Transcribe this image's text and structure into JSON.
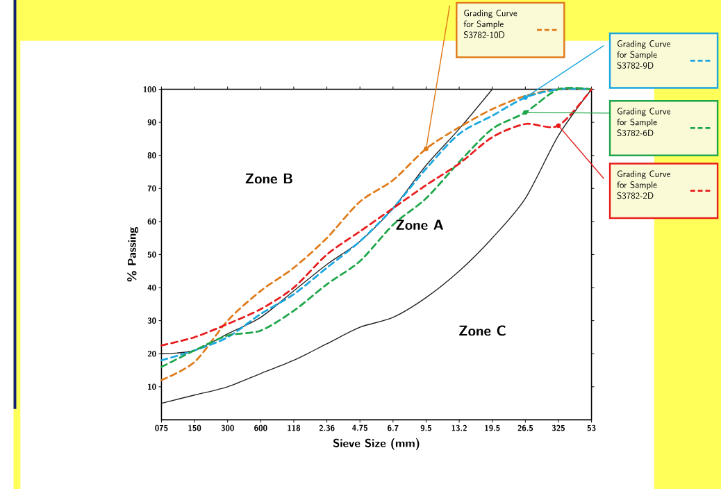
{
  "chart_data": {
    "type": "line",
    "xlabel": "Sieve Size (mm)",
    "ylabel": "% Passing",
    "categories": [
      "075",
      "150",
      "300",
      "600",
      "118",
      "2.36",
      "4.75",
      "6.7",
      "9.5",
      "13.2",
      "19.5",
      "26.5",
      "325",
      "53"
    ],
    "ylim": [
      0,
      100
    ],
    "yticks": [
      10,
      20,
      30,
      40,
      50,
      60,
      70,
      80,
      90,
      100
    ],
    "grid": false,
    "legend": "right",
    "marker": "none",
    "series": [
      {
        "color": "#222222",
        "line_style": "solid",
        "values": [
          20,
          21,
          26,
          31,
          39,
          47,
          54,
          64,
          77,
          88,
          100,
          null,
          null,
          null
        ]
      },
      {
        "color": "#222222",
        "line_style": "solid",
        "values": [
          5,
          7.5,
          10,
          14,
          18,
          23,
          28,
          31,
          37,
          45,
          55,
          67,
          86,
          100
        ]
      },
      {
        "name": "Grading Curve for Sample S3782-10D",
        "color": "#e07b1a",
        "line_style": "dashed",
        "values": [
          12,
          17.5,
          30,
          39,
          46,
          55,
          66,
          72.5,
          82,
          88.5,
          94,
          98,
          100,
          100
        ]
      },
      {
        "name": "Grading Curve for Sample S3782-9D",
        "color": "#1aa7e0",
        "line_style": "dashed",
        "values": [
          18,
          21,
          25,
          32,
          38,
          46,
          54,
          64,
          76,
          86.5,
          92,
          97.5,
          100,
          100
        ]
      },
      {
        "name": "Grading Curve for Sample S3782-6D",
        "color": "#1fa64a",
        "line_style": "dashed",
        "values": [
          16,
          21,
          25.5,
          27,
          33,
          41,
          48,
          59,
          67,
          78,
          88,
          93,
          100,
          100
        ]
      },
      {
        "name": "Grading Curve for Sample S3782-2D",
        "color": "#e81c1c",
        "line_style": "dashed",
        "values": [
          22.5,
          25,
          29,
          33.5,
          40,
          50,
          57,
          64,
          71,
          77.5,
          85.5,
          89.5,
          89,
          100
        ]
      }
    ],
    "annotations": [
      "Zone B",
      "Zone A",
      "Zone C"
    ]
  }
}
